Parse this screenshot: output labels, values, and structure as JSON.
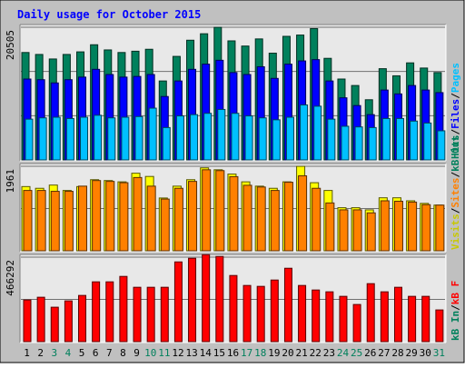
{
  "chart_data": {
    "type": "bar",
    "title": "Daily usage for October 2015",
    "colors": {
      "background": "#c0c0c0",
      "plot_bg": "#e8e8e8",
      "title": "#0000ff",
      "hits": "#00805c",
      "files": "#0000ff",
      "pages": "#00c0ff",
      "visits": "#ffff00",
      "sites": "#ff8000",
      "kbout": "#00805c",
      "kbin": "#ff0000",
      "weekend_day": "#00805c",
      "weekday": "#000000"
    },
    "categories": [
      "1",
      "2",
      "3",
      "4",
      "5",
      "6",
      "7",
      "8",
      "9",
      "10",
      "11",
      "12",
      "13",
      "14",
      "15",
      "16",
      "17",
      "18",
      "19",
      "20",
      "21",
      "22",
      "23",
      "24",
      "25",
      "26",
      "27",
      "28",
      "29",
      "30",
      "31"
    ],
    "weekend_days": [
      "3",
      "4",
      "10",
      "11",
      "17",
      "18",
      "24",
      "25",
      "31"
    ],
    "panels": [
      {
        "ymax_label": "20505",
        "ymax": 20505,
        "right_labels": [
          {
            "text": "Hits",
            "color": "#00805c"
          },
          {
            "text": "/",
            "color": "#000000"
          },
          {
            "text": "Files",
            "color": "#0000ff"
          },
          {
            "text": "/",
            "color": "#000000"
          },
          {
            "text": "Pages",
            "color": "#00c0ff"
          }
        ],
        "series": [
          {
            "name": "Hits",
            "values": [
              16600,
              16300,
              15600,
              16300,
              16700,
              17800,
              17000,
              16600,
              16800,
              17100,
              12200,
              16000,
              18500,
              19500,
              20500,
              18400,
              17600,
              18700,
              16500,
              19100,
              19300,
              20300,
              15700,
              12500,
              11500,
              9300,
              14100,
              13000,
              15000,
              14200,
              13500
            ]
          },
          {
            "name": "Files",
            "values": [
              12500,
              12400,
              11900,
              12400,
              12800,
              14000,
              13200,
              12800,
              12900,
              13200,
              9800,
              12200,
              14000,
              14800,
              15400,
              13500,
              13200,
              14400,
              12600,
              14800,
              15300,
              15500,
              12200,
              9600,
              8400,
              7000,
              10800,
              10200,
              11500,
              10800,
              10400
            ]
          },
          {
            "name": "Pages",
            "values": [
              6300,
              6500,
              6600,
              6400,
              6600,
              6900,
              6500,
              6600,
              6700,
              8000,
              5000,
              6800,
              7000,
              7200,
              7800,
              7200,
              6800,
              6500,
              6200,
              6600,
              8500,
              8300,
              6300,
              5200,
              5100,
              5000,
              6400,
              6400,
              6000,
              5700,
              4500
            ]
          }
        ]
      },
      {
        "ymax_label": "1961",
        "ymax": 1961,
        "right_labels": [
          {
            "text": "Visits",
            "color": "#c8c800"
          },
          {
            "text": "/",
            "color": "#000000"
          },
          {
            "text": "Sites",
            "color": "#ff8000"
          },
          {
            "text": "/",
            "color": "#000000"
          },
          {
            "text": "kB Out",
            "color": "#00805c"
          }
        ],
        "series": [
          {
            "name": "Visits",
            "values": [
              1490,
              1450,
              1525,
              1400,
              1490,
              1650,
              1630,
              1600,
              1800,
              1725,
              1225,
              1500,
              1650,
              1925,
              1880,
              1780,
              1600,
              1500,
              1450,
              1600,
              1960,
              1580,
              1400,
              1000,
              1000,
              950,
              1230,
              1230,
              1160,
              1100,
              1060
            ]
          },
          {
            "name": "Sites",
            "values": [
              1400,
              1400,
              1380,
              1380,
              1500,
              1630,
              1610,
              1580,
              1700,
              1500,
              1200,
              1450,
              1610,
              1880,
              1860,
              1720,
              1520,
              1480,
              1400,
              1590,
              1740,
              1450,
              1110,
              950,
              950,
              880,
              1160,
              1150,
              1130,
              1070,
              1060
            ]
          }
        ]
      },
      {
        "ymax_label": "466292",
        "ymax": 466292,
        "right_labels": [
          {
            "text": "kB In",
            "color": "#00805c"
          },
          {
            "text": "/",
            "color": "#000000"
          },
          {
            "text": "kB F",
            "color": "#ff0000"
          }
        ],
        "series": [
          {
            "name": "kB F",
            "values": [
              230000,
              245000,
              190000,
              225000,
              255000,
              330000,
              330000,
              360000,
              300000,
              300000,
              300000,
              440000,
              460000,
              480000,
              470000,
              365000,
              310000,
              305000,
              340000,
              405000,
              310000,
              285000,
              275000,
              250000,
              205000,
              320000,
              275000,
              300000,
              250000,
              250000,
              175000
            ]
          }
        ]
      }
    ]
  }
}
